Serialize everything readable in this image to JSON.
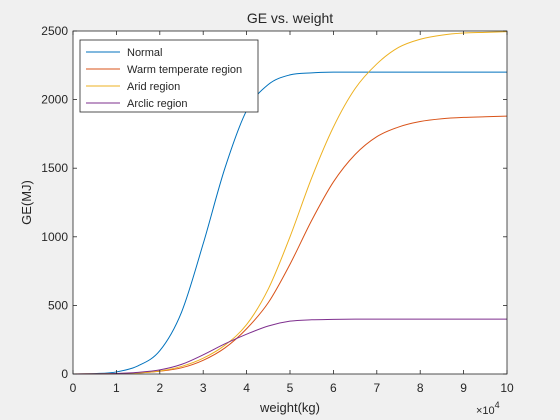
{
  "chart_data": {
    "type": "line",
    "title": "GE vs. weight",
    "xlabel": "weight(kg)",
    "ylabel": "GE(MJ)",
    "xlim": [
      0,
      100000
    ],
    "ylim": [
      0,
      2500
    ],
    "x_exponent_label": "×10",
    "x_exponent_power": "4",
    "xticks": [
      0,
      10000,
      20000,
      30000,
      40000,
      50000,
      60000,
      70000,
      80000,
      90000,
      100000
    ],
    "xtick_labels": [
      "0",
      "1",
      "2",
      "3",
      "4",
      "5",
      "6",
      "7",
      "8",
      "9",
      "10"
    ],
    "yticks": [
      0,
      500,
      1000,
      1500,
      2000,
      2500
    ],
    "ytick_labels": [
      "0",
      "500",
      "1000",
      "1500",
      "2000",
      "2500"
    ],
    "grid": false,
    "legend_position": "top-left",
    "x": [
      0,
      5000,
      10000,
      15000,
      20000,
      25000,
      30000,
      35000,
      40000,
      45000,
      50000,
      55000,
      60000,
      65000,
      70000,
      75000,
      80000,
      85000,
      90000,
      95000,
      100000
    ],
    "series": [
      {
        "name": "Normal",
        "color": "#0072bd",
        "values": [
          0,
          3,
          15,
          60,
          170,
          450,
          950,
          1500,
          1920,
          2110,
          2180,
          2195,
          2200,
          2200,
          2200,
          2200,
          2200,
          2200,
          2200,
          2200,
          2200
        ]
      },
      {
        "name": "Warm temperate region",
        "color": "#d95319",
        "values": [
          0,
          1,
          3,
          8,
          20,
          45,
          100,
          190,
          330,
          520,
          800,
          1120,
          1400,
          1600,
          1730,
          1800,
          1840,
          1860,
          1870,
          1875,
          1880
        ]
      },
      {
        "name": "Arid region",
        "color": "#edb120",
        "values": [
          0,
          1,
          3,
          8,
          22,
          55,
          115,
          210,
          360,
          620,
          1000,
          1430,
          1800,
          2080,
          2260,
          2380,
          2440,
          2470,
          2485,
          2490,
          2495
        ]
      },
      {
        "name": "Arclic region",
        "color": "#7e2f8e",
        "values": [
          0,
          1,
          4,
          12,
          30,
          70,
          140,
          220,
          290,
          350,
          385,
          395,
          398,
          400,
          400,
          400,
          400,
          400,
          400,
          400,
          400
        ]
      }
    ]
  }
}
